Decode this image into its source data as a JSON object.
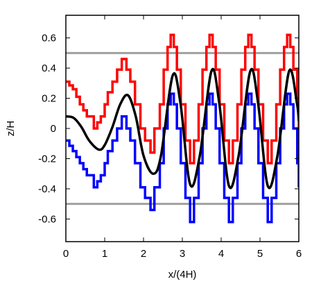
{
  "chart_data": {
    "type": "line",
    "title": "",
    "xlabel": "x/(4H)",
    "ylabel": "z/H",
    "xlim": [
      0,
      6
    ],
    "ylim": [
      -0.75,
      0.75
    ],
    "x_ticks": [
      0,
      1,
      2,
      3,
      4,
      5,
      6
    ],
    "y_ticks": [
      -0.6,
      -0.4,
      -0.2,
      0,
      0.2,
      0.4,
      0.6
    ],
    "x_tick_labels": [
      "0",
      "1",
      "2",
      "3",
      "4",
      "5",
      "6"
    ],
    "y_tick_labels": [
      "-0.6",
      "-0.4",
      "-0.2",
      "0",
      "0.2",
      "0.4",
      "0.6"
    ],
    "grid": false,
    "legend": "none",
    "reference_lines": [
      {
        "y": 0.5,
        "color": "#a0a0a0"
      },
      {
        "y": -0.5,
        "color": "#a0a0a0"
      }
    ],
    "series": [
      {
        "color": "#000000",
        "style": "smooth",
        "x": [
          0,
          0.2,
          0.4,
          0.6,
          0.85,
          1.0,
          1.2,
          1.4,
          1.6,
          1.8,
          2.0,
          2.25,
          2.45,
          2.75,
          2.95,
          3.2,
          3.45,
          3.75,
          3.95,
          4.2,
          4.45,
          4.75,
          4.95,
          5.2,
          5.45,
          5.75,
          5.95,
          6.0
        ],
        "y": [
          0.08,
          0.07,
          0.01,
          -0.08,
          -0.14,
          -0.11,
          0.01,
          0.16,
          0.22,
          0.08,
          -0.18,
          -0.3,
          -0.18,
          0.35,
          0.17,
          -0.37,
          -0.18,
          0.38,
          0.17,
          -0.38,
          -0.18,
          0.38,
          0.17,
          -0.38,
          -0.18,
          0.38,
          0.17,
          0.05
        ]
      },
      {
        "color": "#ff0000",
        "style": "step",
        "x": [
          0,
          0.18,
          0.36,
          0.54,
          0.72,
          0.9,
          1.0,
          1.08,
          1.2,
          1.32,
          1.44,
          1.56,
          1.66,
          1.78,
          1.92,
          2.04,
          2.18,
          2.28,
          2.42,
          2.52,
          2.62,
          2.7,
          2.78,
          2.86,
          2.96,
          3.08,
          3.2,
          3.3,
          3.42,
          3.52,
          3.62,
          3.7,
          3.78,
          3.86,
          3.96,
          4.08,
          4.2,
          4.3,
          4.42,
          4.52,
          4.62,
          4.7,
          4.78,
          4.86,
          4.96,
          5.08,
          5.2,
          5.3,
          5.42,
          5.52,
          5.62,
          5.7,
          5.78,
          5.86,
          5.96,
          6.0
        ],
        "y": [
          0.31,
          0.26,
          0.16,
          0.08,
          0.0,
          0.08,
          0.16,
          0.24,
          0.31,
          0.39,
          0.46,
          0.39,
          0.31,
          0.16,
          0.0,
          -0.08,
          -0.16,
          0.0,
          0.16,
          0.39,
          0.54,
          0.62,
          0.54,
          0.39,
          0.16,
          -0.08,
          -0.23,
          -0.08,
          0.16,
          0.39,
          0.54,
          0.62,
          0.54,
          0.39,
          0.16,
          -0.08,
          -0.23,
          -0.08,
          0.16,
          0.39,
          0.54,
          0.62,
          0.54,
          0.39,
          0.16,
          -0.08,
          -0.23,
          -0.08,
          0.16,
          0.39,
          0.54,
          0.62,
          0.54,
          0.39,
          0.16,
          -0.08
        ]
      },
      {
        "color": "#0000ff",
        "style": "step",
        "x": [
          0,
          0.18,
          0.36,
          0.54,
          0.72,
          0.9,
          1.0,
          1.08,
          1.2,
          1.32,
          1.44,
          1.56,
          1.66,
          1.78,
          1.92,
          2.04,
          2.18,
          2.28,
          2.42,
          2.52,
          2.62,
          2.7,
          2.78,
          2.86,
          2.96,
          3.08,
          3.2,
          3.3,
          3.42,
          3.52,
          3.62,
          3.7,
          3.78,
          3.86,
          3.96,
          4.08,
          4.2,
          4.3,
          4.42,
          4.52,
          4.62,
          4.7,
          4.78,
          4.86,
          4.96,
          5.08,
          5.2,
          5.3,
          5.42,
          5.52,
          5.62,
          5.7,
          5.78,
          5.86,
          5.96,
          6.0
        ],
        "y": [
          -0.08,
          -0.15,
          -0.23,
          -0.31,
          -0.39,
          -0.31,
          -0.23,
          -0.15,
          -0.08,
          0.0,
          0.08,
          0.0,
          -0.08,
          -0.23,
          -0.39,
          -0.46,
          -0.54,
          -0.39,
          -0.23,
          0.0,
          0.16,
          0.23,
          0.16,
          0.0,
          -0.23,
          -0.46,
          -0.62,
          -0.46,
          -0.23,
          0.0,
          0.16,
          0.23,
          0.16,
          0.0,
          -0.23,
          -0.46,
          -0.62,
          -0.46,
          -0.23,
          0.0,
          0.16,
          0.23,
          0.16,
          0.0,
          -0.23,
          -0.46,
          -0.62,
          -0.46,
          -0.23,
          0.0,
          0.16,
          0.23,
          0.16,
          0.0,
          -0.23,
          -0.39
        ]
      }
    ]
  }
}
